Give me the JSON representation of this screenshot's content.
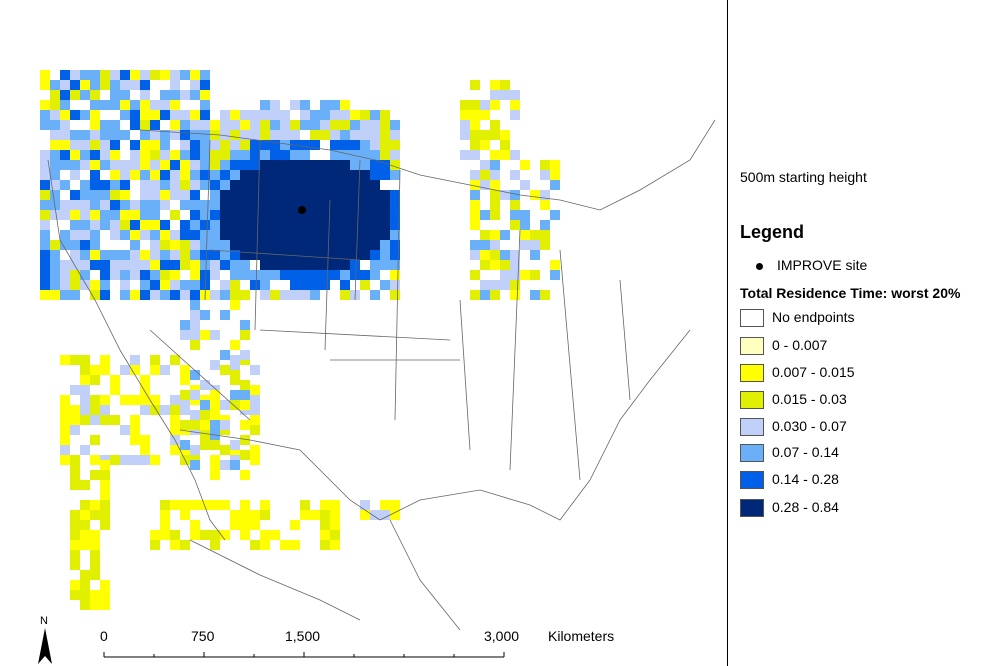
{
  "subtitle": "500m starting height",
  "legend": {
    "title": "Legend",
    "site_label": "IMPROVE site",
    "residence_title": "Total Residence Time: worst 20%",
    "classes": [
      {
        "label": "No endpoints",
        "color": "#ffffff"
      },
      {
        "label": "0 - 0.007",
        "color": "#ffffc0"
      },
      {
        "label": "0.007 - 0.015",
        "color": "#ffff00"
      },
      {
        "label": "0.015 - 0.03",
        "color": "#e0f000"
      },
      {
        "label": "0.030 - 0.07",
        "color": "#c0d0f8"
      },
      {
        "label": "0.07 - 0.14",
        "color": "#6ab0f8"
      },
      {
        "label": "0.14 - 0.28",
        "color": "#0060e8"
      },
      {
        "label": "0.28 - 0.84",
        "color": "#002878"
      }
    ]
  },
  "scale": {
    "ticks": [
      "0",
      "750",
      "1,500",
      "3,000"
    ],
    "unit": "Kilometers"
  },
  "north_label": "N"
}
